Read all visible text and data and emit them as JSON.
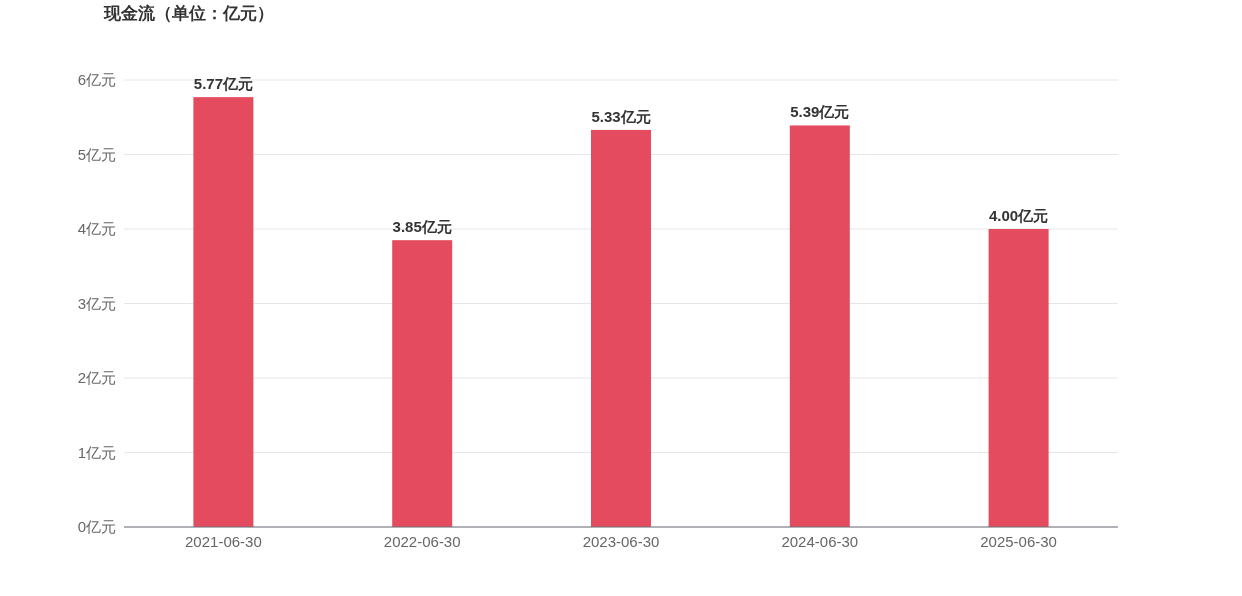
{
  "chart_data": {
    "type": "bar",
    "title": "现金流（单位：亿元）",
    "categories": [
      "2021-06-30",
      "2022-06-30",
      "2023-06-30",
      "2024-06-30",
      "2025-06-30"
    ],
    "values": [
      5.77,
      3.85,
      5.33,
      5.39,
      4.0
    ],
    "value_labels": [
      "5.77亿元",
      "3.85亿元",
      "5.33亿元",
      "5.39亿元",
      "4.00亿元"
    ],
    "color": "#e54b5e",
    "ylim": [
      0,
      6
    ],
    "yticks": [
      {
        "value": 0,
        "label": "0亿元"
      },
      {
        "value": 1,
        "label": "1亿元"
      },
      {
        "value": 2,
        "label": "2亿元"
      },
      {
        "value": 3,
        "label": "3亿元"
      },
      {
        "value": 4,
        "label": "4亿元"
      },
      {
        "value": 5,
        "label": "5亿元"
      },
      {
        "value": 6,
        "label": "6亿元"
      }
    ],
    "grid": "y"
  }
}
